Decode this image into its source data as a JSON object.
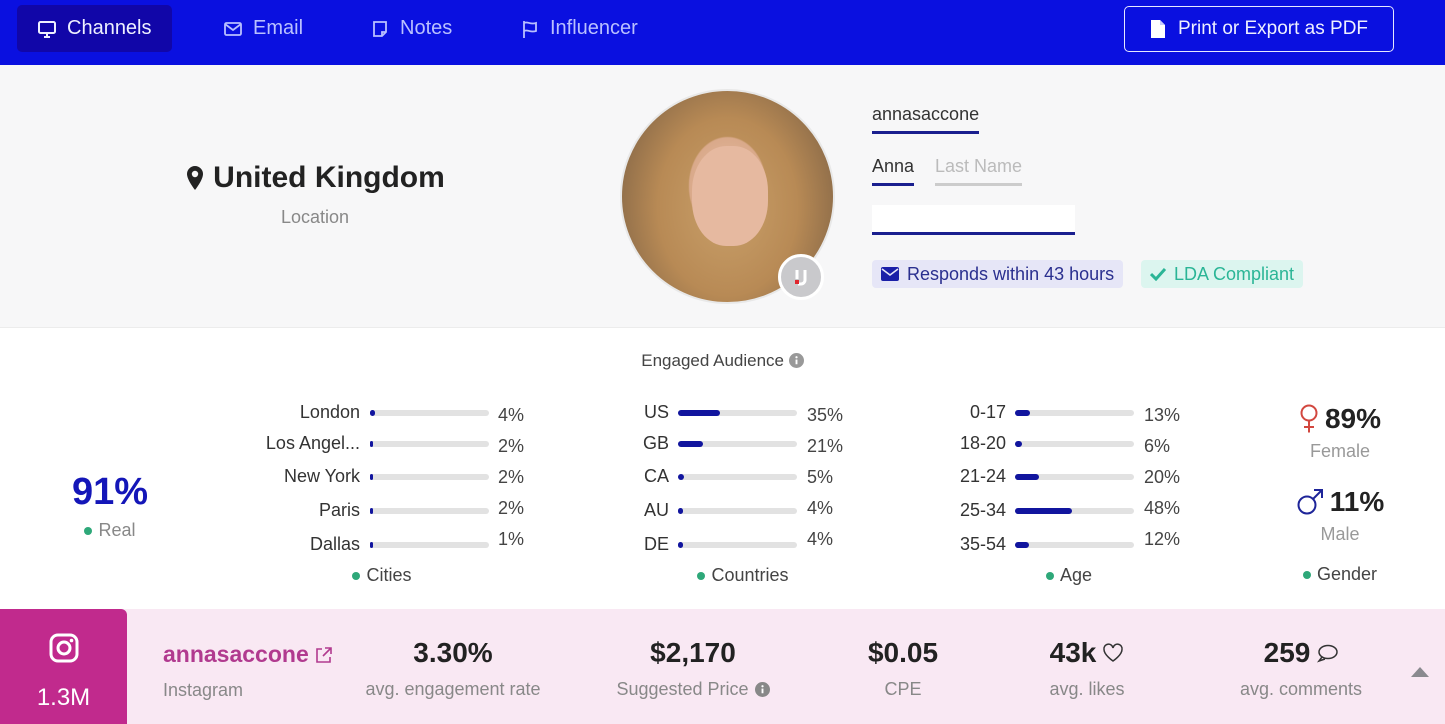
{
  "nav": {
    "tabs": [
      {
        "label": "Channels",
        "icon": "monitor-icon",
        "active": true
      },
      {
        "label": "Email",
        "icon": "envelope-icon",
        "active": false
      },
      {
        "label": "Notes",
        "icon": "note-icon",
        "active": false
      },
      {
        "label": "Influencer",
        "icon": "flag-icon",
        "active": false
      }
    ],
    "export_label": "Print or Export as PDF"
  },
  "profile": {
    "location": "United Kingdom",
    "location_label": "Location",
    "username": "annasaccone",
    "first_name": "Anna",
    "last_name_placeholder": "Last Name",
    "email_value": "",
    "responds_badge": "Responds within 43 hours",
    "compliance_badge": "LDA Compliant"
  },
  "audience": {
    "title": "Engaged Audience",
    "real": {
      "value": "91%",
      "label": "Real"
    },
    "cities": {
      "label": "Cities",
      "items": [
        {
          "name": "London",
          "value": 4,
          "text": "4%"
        },
        {
          "name": "Los Angel...",
          "value": 2,
          "text": "2%"
        },
        {
          "name": "New York",
          "value": 2,
          "text": "2%"
        },
        {
          "name": "Paris",
          "value": 2,
          "text": "2%"
        },
        {
          "name": "Dallas",
          "value": 1,
          "text": "1%"
        }
      ]
    },
    "countries": {
      "label": "Countries",
      "items": [
        {
          "name": "US",
          "value": 35,
          "text": "35%"
        },
        {
          "name": "GB",
          "value": 21,
          "text": "21%"
        },
        {
          "name": "CA",
          "value": 5,
          "text": "5%"
        },
        {
          "name": "AU",
          "value": 4,
          "text": "4%"
        },
        {
          "name": "DE",
          "value": 4,
          "text": "4%"
        }
      ]
    },
    "age": {
      "label": "Age",
      "items": [
        {
          "name": "0-17",
          "value": 13,
          "text": "13%"
        },
        {
          "name": "18-20",
          "value": 6,
          "text": "6%"
        },
        {
          "name": "21-24",
          "value": 20,
          "text": "20%"
        },
        {
          "name": "25-34",
          "value": 48,
          "text": "48%"
        },
        {
          "name": "35-54",
          "value": 12,
          "text": "12%"
        }
      ]
    },
    "gender": {
      "label": "Gender",
      "female": {
        "value": "89%",
        "label": "Female"
      },
      "male": {
        "value": "11%",
        "label": "Male"
      }
    }
  },
  "instagram": {
    "followers": "1.3M",
    "handle": "annasaccone",
    "platform": "Instagram",
    "stats": [
      {
        "value": "3.30%",
        "label": "avg. engagement rate"
      },
      {
        "value": "$2,170",
        "label": "Suggested Price"
      },
      {
        "value": "$0.05",
        "label": "CPE"
      },
      {
        "value": "43k",
        "label": "avg. likes"
      },
      {
        "value": "259",
        "label": "avg. comments"
      }
    ]
  },
  "colors": {
    "nav_bg": "#0a10e0",
    "accent": "#11159e",
    "instagram": "#c12a8d",
    "positive": "#2ea879"
  }
}
